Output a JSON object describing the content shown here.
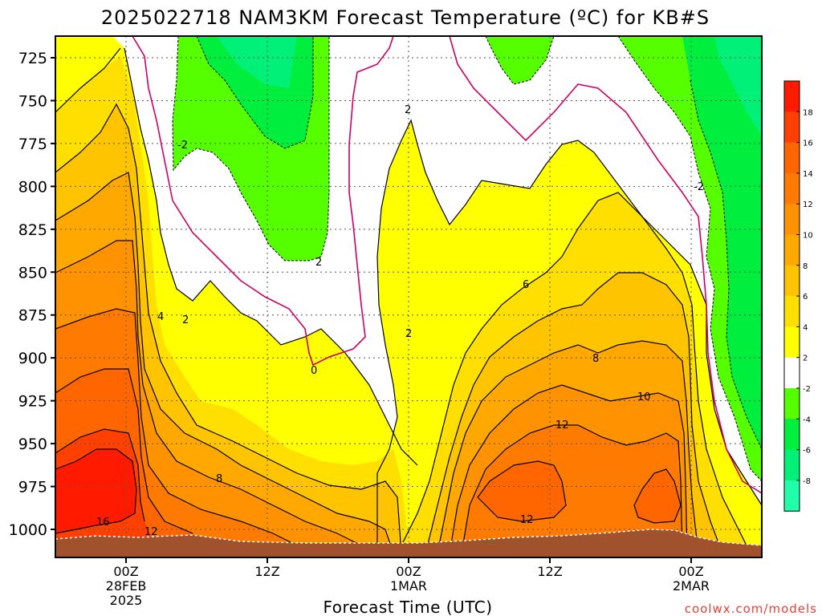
{
  "title": "2025022718 NAM3KM Forecast Temperature (ºC) for KB#S",
  "x_axis_title": "Forecast Time (UTC)",
  "credit": "coolwx.com/models",
  "chart_data": {
    "type": "heatmap",
    "title": "2025022718 NAM3KM Forecast Temperature (ºC) for KB#S",
    "xlabel": "Forecast Time (UTC)",
    "ylabel": "",
    "y_scale": "pressure (hPa), increasing downward",
    "ylim": [
      1010,
      713
    ],
    "x_ticks": [
      {
        "label": "00Z",
        "sub1": "28FEB",
        "sub2": "2025"
      },
      {
        "label": "12Z",
        "sub1": "",
        "sub2": ""
      },
      {
        "label": "00Z",
        "sub1": "1MAR",
        "sub2": ""
      },
      {
        "label": "12Z",
        "sub1": "",
        "sub2": ""
      },
      {
        "label": "00Z",
        "sub1": "2MAR",
        "sub2": ""
      }
    ],
    "y_ticks": [
      725,
      750,
      775,
      800,
      825,
      850,
      875,
      900,
      925,
      950,
      975,
      1000
    ],
    "grid": true,
    "colorbar": {
      "position": "right",
      "labels": [
        "18",
        "16",
        "14",
        "12",
        "10",
        "8",
        "6",
        "4",
        "2",
        "-2",
        "-4",
        "-6",
        "-8"
      ],
      "colors": [
        "#ff1a00",
        "#ff4000",
        "#ff6600",
        "#ff7a00",
        "#ff9200",
        "#ffa800",
        "#ffc400",
        "#ffdf00",
        "#ffff00",
        "#ffffff",
        "#55ff00",
        "#00ee3e",
        "#00f078",
        "#22ffaa"
      ]
    },
    "contour_labels": [
      "-2",
      "2",
      "-2",
      "2",
      "2",
      "0",
      "4",
      "2",
      "8",
      "6",
      "8",
      "10",
      "12",
      "12",
      "16",
      "12",
      "-2"
    ]
  }
}
